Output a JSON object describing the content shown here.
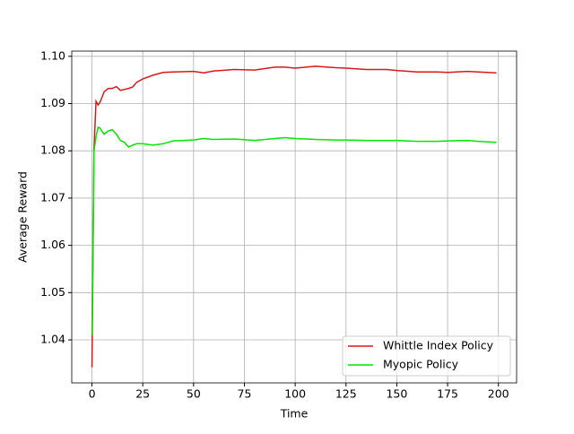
{
  "chart_data": {
    "type": "line",
    "xlabel": "Time",
    "ylabel": "Average Reward",
    "x": [
      0,
      1,
      2,
      3,
      4,
      6,
      8,
      10,
      12,
      14,
      16,
      18,
      20,
      22,
      25,
      30,
      35,
      40,
      50,
      55,
      60,
      70,
      80,
      90,
      95,
      100,
      110,
      120,
      125,
      135,
      145,
      150,
      160,
      170,
      175,
      185,
      190,
      199
    ],
    "series": [
      {
        "name": "Whittle Index Policy",
        "color": "#d7191c",
        "values": [
          1.0342,
          1.0805,
          1.0905,
          1.0897,
          1.0903,
          1.0925,
          1.0932,
          1.0932,
          1.0936,
          1.0928,
          1.093,
          1.0932,
          1.0935,
          1.0945,
          1.0952,
          1.096,
          1.0966,
          1.0967,
          1.0968,
          1.0965,
          1.0969,
          1.0972,
          1.0971,
          1.0977,
          1.0977,
          1.0975,
          1.0979,
          1.0976,
          1.0975,
          1.0972,
          1.0972,
          1.097,
          1.0967,
          1.0967,
          1.0966,
          1.0968,
          1.0967,
          1.0965
        ]
      },
      {
        "name": "Myopic Policy",
        "color": "#00e600",
        "values": [
          1.041,
          1.08,
          1.083,
          1.085,
          1.0848,
          1.0835,
          1.0842,
          1.0845,
          1.0835,
          1.0822,
          1.0818,
          1.0808,
          1.0812,
          1.0815,
          1.0815,
          1.0812,
          1.0815,
          1.0821,
          1.0823,
          1.0826,
          1.0824,
          1.0825,
          1.0822,
          1.0826,
          1.0828,
          1.0826,
          1.0824,
          1.0823,
          1.0823,
          1.0822,
          1.0822,
          1.0822,
          1.082,
          1.082,
          1.0821,
          1.0822,
          1.082,
          1.0818
        ]
      }
    ],
    "xlim": [
      -9.95,
      208.95
    ],
    "ylim": [
      1.0309,
      1.1011
    ],
    "xticks": [
      0,
      25,
      50,
      75,
      100,
      125,
      150,
      175,
      200
    ],
    "yticks": [
      1.04,
      1.05,
      1.06,
      1.07,
      1.08,
      1.09,
      {
        "value": 1.1,
        "label": "1.10"
      }
    ],
    "grid": true,
    "legend": "lower right"
  }
}
